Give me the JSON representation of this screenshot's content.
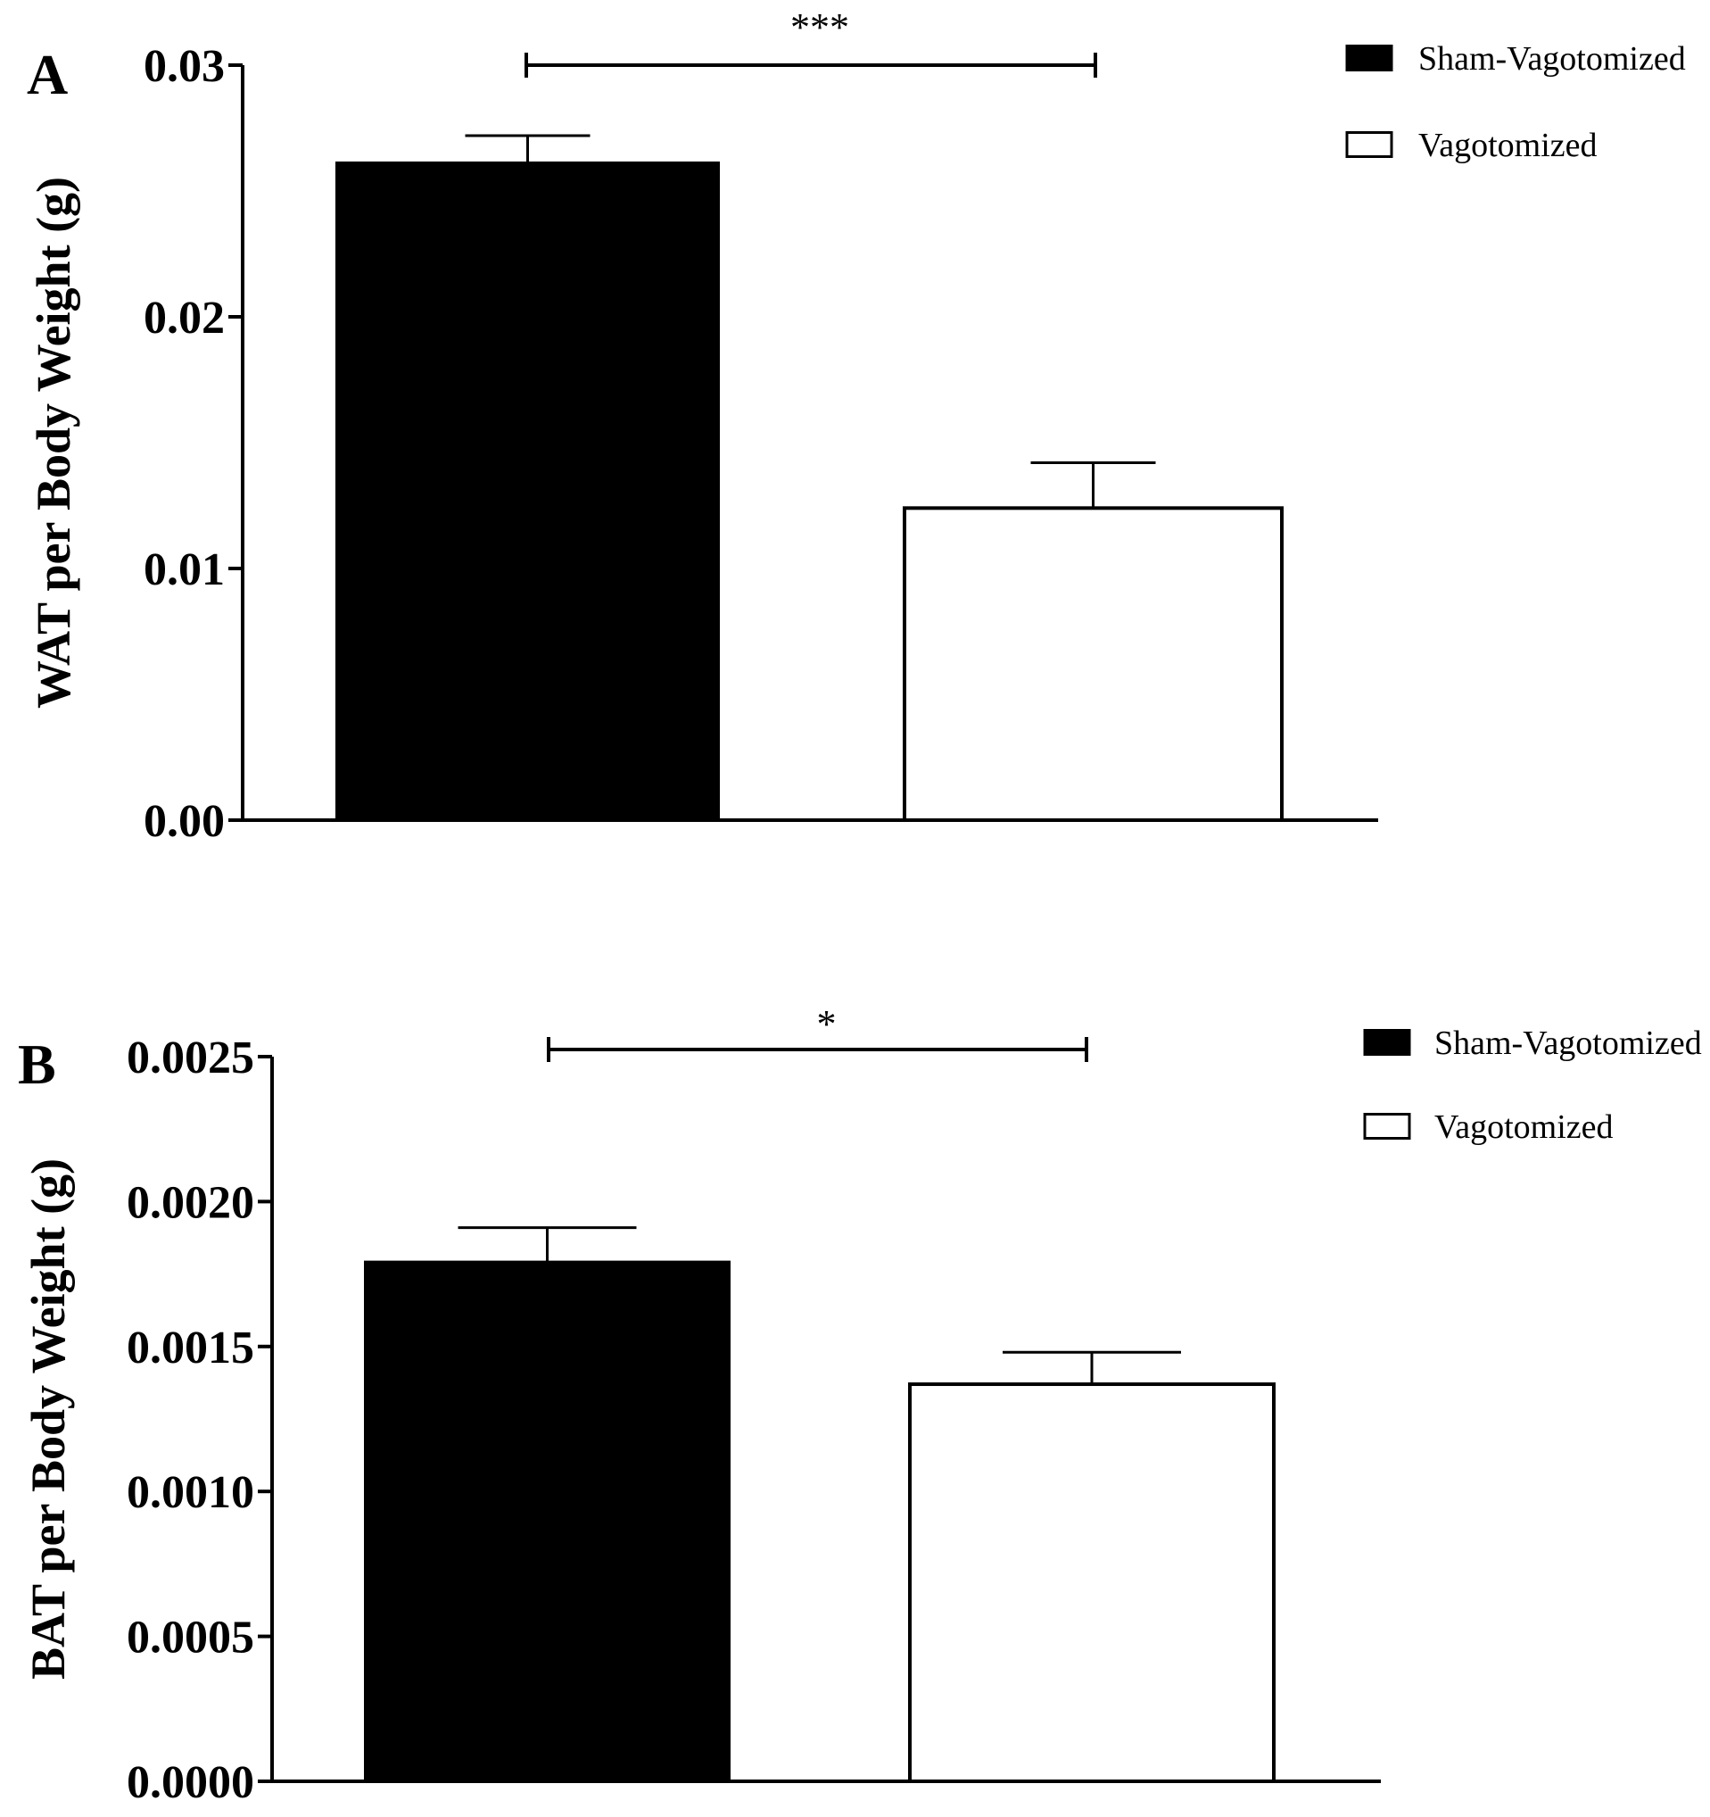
{
  "chart_data": [
    {
      "panel": "A",
      "type": "bar",
      "ylabel": "WAT per Body Weight (g)",
      "ylim": [
        0,
        0.03
      ],
      "yticks": [
        "0.00",
        "0.01",
        "0.02",
        "0.03"
      ],
      "ytick_values": [
        0,
        0.01,
        0.02,
        0.03
      ],
      "series": [
        {
          "name": "Sham-Vagotomized",
          "value": 0.0261,
          "error": 0.0011,
          "fill": "#000000"
        },
        {
          "name": "Vagotomized",
          "value": 0.0124,
          "error": 0.0018,
          "fill": "#ffffff"
        }
      ],
      "significance": "***",
      "legend_position": "top-right",
      "grid": false
    },
    {
      "panel": "B",
      "type": "bar",
      "ylabel": "BAT per Body Weight (g)",
      "ylim": [
        0,
        0.0025
      ],
      "yticks": [
        "0.0000",
        "0.0005",
        "0.0010",
        "0.0015",
        "0.0020",
        "0.0025"
      ],
      "ytick_values": [
        0,
        0.0005,
        0.001,
        0.0015,
        0.002,
        0.0025
      ],
      "series": [
        {
          "name": "Sham-Vagotomized",
          "value": 0.00179,
          "error": 0.00012,
          "fill": "#000000"
        },
        {
          "name": "Vagotomized",
          "value": 0.00137,
          "error": 0.00011,
          "fill": "#ffffff"
        }
      ],
      "significance": "*",
      "legend_position": "top-right",
      "grid": false
    }
  ]
}
